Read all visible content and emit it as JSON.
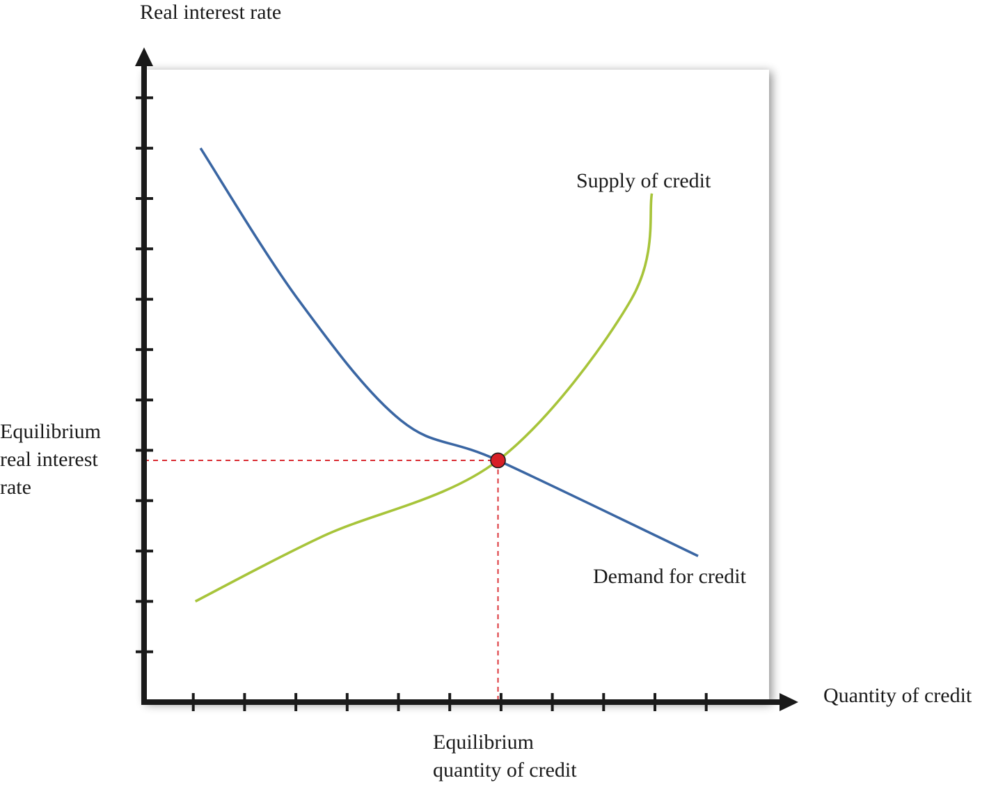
{
  "chart_data": {
    "type": "line",
    "title": "",
    "ylabel": "Real interest rate",
    "xlabel": "Quantity of credit",
    "xlim": [
      0,
      11
    ],
    "ylim": [
      0,
      12
    ],
    "grid": false,
    "x_ticks": [
      1,
      2,
      3,
      4,
      5,
      6,
      7,
      8,
      9,
      10,
      11
    ],
    "y_ticks": [
      1,
      2,
      3,
      4,
      5,
      6,
      7,
      8,
      9,
      10,
      11,
      12
    ],
    "series": [
      {
        "name": "Demand for credit",
        "color": "#3a66a3",
        "points": [
          [
            1.1,
            11.0
          ],
          [
            3.0,
            8.0
          ],
          [
            5.0,
            5.6
          ],
          [
            6.9,
            4.8
          ],
          [
            10.8,
            2.9
          ]
        ]
      },
      {
        "name": "Supply of credit",
        "color": "#a7c43a",
        "points": [
          [
            1.0,
            2.0
          ],
          [
            3.5,
            3.3
          ],
          [
            6.9,
            4.8
          ],
          [
            9.5,
            8.0
          ],
          [
            9.9,
            10.1
          ]
        ]
      }
    ],
    "equilibrium": {
      "x": 6.9,
      "y": 4.8,
      "point_color": "#d71f26",
      "guide_color": "#d71f26",
      "x_label": [
        "Equilibrium",
        "quantity of credit"
      ],
      "y_label": [
        "Equilibrium",
        "real interest",
        "rate"
      ]
    }
  }
}
